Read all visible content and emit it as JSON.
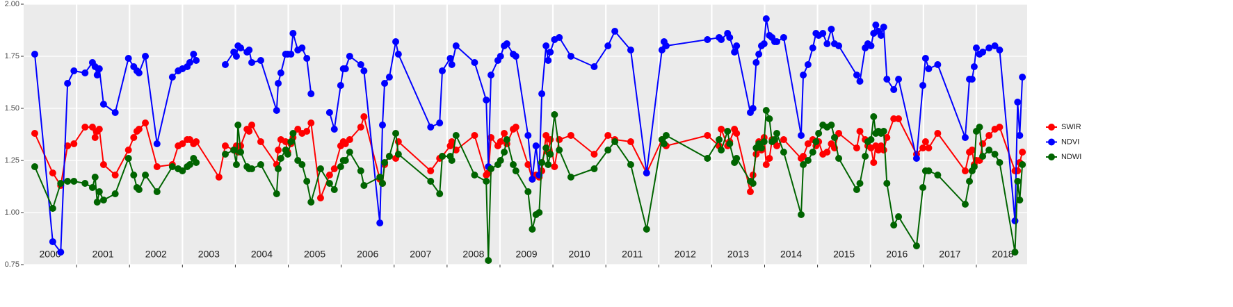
{
  "chart_data": {
    "type": "line",
    "x": [
      2000.21,
      2000.55,
      2000.7,
      2000.83,
      2000.95,
      2001.16,
      2001.3,
      2001.35,
      2001.39,
      2001.43,
      2001.51,
      2001.73,
      2001.98,
      2002.08,
      2002.14,
      2002.18,
      2002.3,
      2002.52,
      2002.81,
      2002.92,
      2003.0,
      2003.09,
      2003.14,
      2003.21,
      2003.26,
      2003.69,
      2003.81,
      2003.97,
      2004.02,
      2004.05,
      2004.1,
      2004.22,
      2004.26,
      2004.31,
      2004.48,
      2004.78,
      2004.81,
      2004.86,
      2004.95,
      2004.99,
      2005.05,
      2005.09,
      2005.18,
      2005.26,
      2005.35,
      2005.43,
      2005.61,
      2005.78,
      2005.87,
      2005.99,
      2006.04,
      2006.08,
      2006.16,
      2006.37,
      2006.43,
      2006.73,
      2006.78,
      2006.82,
      2006.91,
      2007.03,
      2007.08,
      2007.69,
      2007.86,
      2007.91,
      2008.06,
      2008.09,
      2008.17,
      2008.52,
      2008.74,
      2008.78,
      2008.83,
      2008.96,
      2009.01,
      2009.08,
      2009.13,
      2009.25,
      2009.3,
      2009.53,
      2009.61,
      2009.68,
      2009.74,
      2009.79,
      2009.87,
      2009.91,
      2009.95,
      2010.03,
      2010.12,
      2010.34,
      2010.78,
      2011.04,
      2011.17,
      2011.47,
      2011.77,
      2012.06,
      2012.1,
      2012.14,
      2012.92,
      2013.14,
      2013.18,
      2013.3,
      2013.34,
      2013.43,
      2013.47,
      2013.73,
      2013.78,
      2013.84,
      2013.89,
      2013.94,
      2013.99,
      2014.03,
      2014.09,
      2014.14,
      2014.19,
      2014.23,
      2014.36,
      2014.69,
      2014.73,
      2014.82,
      2014.91,
      2014.97,
      2015.02,
      2015.1,
      2015.18,
      2015.26,
      2015.32,
      2015.4,
      2015.74,
      2015.8,
      2015.9,
      2015.95,
      2016.01,
      2016.06,
      2016.1,
      2016.15,
      2016.2,
      2016.25,
      2016.31,
      2016.44,
      2016.53,
      2016.87,
      2016.99,
      2017.04,
      2017.1,
      2017.27,
      2017.79,
      2017.87,
      2017.92,
      2017.96,
      2018.0,
      2018.06,
      2018.12,
      2018.24,
      2018.35,
      2018.44,
      2018.73,
      2018.78,
      2018.82,
      2018.87
    ],
    "series": [
      {
        "name": "SWIR",
        "color": "#ff0000",
        "values": [
          1.38,
          1.19,
          1.13,
          1.32,
          1.33,
          1.41,
          1.41,
          1.36,
          1.39,
          1.4,
          1.23,
          1.18,
          1.3,
          1.36,
          1.39,
          1.4,
          1.43,
          1.22,
          1.23,
          1.32,
          1.33,
          1.35,
          1.35,
          1.33,
          1.34,
          1.17,
          1.32,
          1.3,
          1.32,
          1.29,
          1.32,
          1.4,
          1.39,
          1.42,
          1.34,
          1.23,
          1.3,
          1.35,
          1.34,
          1.29,
          1.33,
          1.36,
          1.4,
          1.38,
          1.39,
          1.43,
          1.07,
          1.18,
          1.21,
          1.32,
          1.34,
          1.33,
          1.35,
          1.41,
          1.46,
          1.16,
          1.14,
          1.23,
          1.27,
          1.26,
          1.34,
          1.2,
          1.26,
          1.27,
          1.32,
          1.34,
          1.3,
          1.37,
          1.18,
          1.19,
          1.36,
          1.32,
          1.34,
          1.38,
          1.33,
          1.4,
          1.41,
          1.23,
          1.16,
          1.18,
          1.17,
          1.2,
          1.37,
          1.29,
          1.35,
          1.22,
          1.35,
          1.37,
          1.28,
          1.37,
          1.35,
          1.34,
          1.19,
          1.35,
          1.33,
          1.32,
          1.37,
          1.32,
          1.4,
          1.32,
          1.34,
          1.4,
          1.38,
          1.1,
          1.18,
          1.28,
          1.34,
          1.3,
          1.36,
          1.23,
          1.26,
          1.35,
          1.34,
          1.32,
          1.35,
          1.26,
          1.27,
          1.33,
          1.35,
          1.32,
          1.34,
          1.28,
          1.29,
          1.33,
          1.31,
          1.38,
          1.31,
          1.39,
          1.35,
          1.32,
          1.31,
          1.24,
          1.32,
          1.3,
          1.32,
          1.3,
          1.36,
          1.45,
          1.45,
          1.28,
          1.31,
          1.34,
          1.31,
          1.38,
          1.2,
          1.29,
          1.3,
          1.23,
          1.25,
          1.25,
          1.33,
          1.37,
          1.4,
          1.41,
          1.2,
          1.2,
          1.24,
          1.29
        ]
      },
      {
        "name": "NDVI",
        "color": "#0000ff",
        "values": [
          1.76,
          0.86,
          0.81,
          1.62,
          1.68,
          1.67,
          1.72,
          1.7,
          1.66,
          1.69,
          1.52,
          1.48,
          1.74,
          1.7,
          1.68,
          1.67,
          1.75,
          1.33,
          1.65,
          1.68,
          1.69,
          1.7,
          1.72,
          1.76,
          1.73,
          null,
          1.71,
          1.77,
          1.75,
          1.8,
          1.79,
          1.77,
          1.78,
          1.72,
          1.73,
          1.49,
          1.62,
          1.67,
          1.76,
          1.76,
          1.76,
          1.86,
          1.78,
          1.79,
          1.74,
          1.57,
          null,
          1.48,
          1.4,
          1.61,
          1.69,
          1.69,
          1.75,
          1.71,
          1.68,
          0.95,
          1.42,
          1.62,
          1.65,
          1.82,
          1.76,
          1.41,
          1.43,
          1.68,
          1.74,
          1.71,
          1.8,
          1.72,
          1.54,
          1.22,
          1.66,
          1.73,
          1.75,
          1.8,
          1.81,
          1.76,
          1.75,
          1.37,
          1.16,
          1.32,
          1.18,
          1.57,
          1.8,
          1.73,
          1.77,
          1.83,
          1.84,
          1.75,
          1.7,
          1.8,
          1.87,
          1.78,
          1.19,
          1.78,
          1.82,
          1.8,
          1.83,
          1.84,
          1.83,
          1.86,
          1.84,
          1.77,
          1.8,
          1.48,
          1.5,
          1.72,
          1.76,
          1.8,
          1.81,
          1.93,
          1.85,
          1.84,
          1.82,
          1.82,
          1.84,
          1.37,
          1.66,
          1.71,
          1.79,
          1.86,
          1.85,
          1.86,
          1.81,
          1.88,
          1.81,
          1.8,
          1.66,
          1.63,
          1.79,
          1.81,
          1.8,
          1.86,
          1.9,
          1.87,
          1.85,
          1.89,
          1.64,
          1.59,
          1.64,
          1.26,
          1.61,
          1.74,
          1.69,
          1.71,
          1.36,
          1.64,
          1.64,
          1.7,
          1.79,
          1.76,
          1.77,
          1.79,
          1.8,
          1.78,
          0.96,
          1.53,
          1.37,
          1.65
        ]
      },
      {
        "name": "NDWI",
        "color": "#006400",
        "values": [
          1.22,
          1.02,
          1.14,
          1.15,
          1.15,
          1.14,
          1.12,
          1.17,
          1.05,
          1.1,
          1.06,
          1.09,
          1.26,
          1.18,
          1.12,
          1.11,
          1.18,
          1.1,
          1.22,
          1.21,
          1.2,
          1.22,
          1.23,
          1.26,
          1.24,
          null,
          1.28,
          1.3,
          1.23,
          1.42,
          1.29,
          1.22,
          1.21,
          1.21,
          1.23,
          1.09,
          1.21,
          1.26,
          1.3,
          1.28,
          1.34,
          1.38,
          1.25,
          1.23,
          1.15,
          1.05,
          1.21,
          1.14,
          1.11,
          1.22,
          1.25,
          1.25,
          1.29,
          1.2,
          1.13,
          1.17,
          1.14,
          1.24,
          1.27,
          1.38,
          1.28,
          1.15,
          1.09,
          1.27,
          1.27,
          1.25,
          1.37,
          1.18,
          1.15,
          0.77,
          1.21,
          1.23,
          1.25,
          1.29,
          1.35,
          1.23,
          1.2,
          1.1,
          0.92,
          0.99,
          1.0,
          1.24,
          1.31,
          1.23,
          1.28,
          1.47,
          1.3,
          1.17,
          1.21,
          1.3,
          1.34,
          1.23,
          0.92,
          1.35,
          1.33,
          1.37,
          1.26,
          1.35,
          1.3,
          1.39,
          1.33,
          1.24,
          1.26,
          1.15,
          1.14,
          1.31,
          1.33,
          1.31,
          1.34,
          1.49,
          1.45,
          1.34,
          1.35,
          1.38,
          1.29,
          0.99,
          1.23,
          1.25,
          1.29,
          1.34,
          1.38,
          1.42,
          1.41,
          1.42,
          1.36,
          1.26,
          1.11,
          1.14,
          1.27,
          1.34,
          1.35,
          1.46,
          1.38,
          1.39,
          1.38,
          1.39,
          1.14,
          0.94,
          0.98,
          0.84,
          1.12,
          1.2,
          1.2,
          1.18,
          1.04,
          1.15,
          1.2,
          1.22,
          1.39,
          1.41,
          1.27,
          1.3,
          1.28,
          1.24,
          0.81,
          1.15,
          1.06,
          1.23
        ]
      }
    ],
    "xlim": [
      2000,
      2018.96
    ],
    "xticks": [
      {
        "value": 2000.5,
        "label": "2000"
      },
      {
        "value": 2001.5,
        "label": "2001"
      },
      {
        "value": 2002.5,
        "label": "2002"
      },
      {
        "value": 2003.5,
        "label": "2003"
      },
      {
        "value": 2004.5,
        "label": "2004"
      },
      {
        "value": 2005.5,
        "label": "2005"
      },
      {
        "value": 2006.5,
        "label": "2006"
      },
      {
        "value": 2007.5,
        "label": "2007"
      },
      {
        "value": 2008.5,
        "label": "2008"
      },
      {
        "value": 2009.5,
        "label": "2009"
      },
      {
        "value": 2010.5,
        "label": "2010"
      },
      {
        "value": 2011.5,
        "label": "2011"
      },
      {
        "value": 2012.5,
        "label": "2012"
      },
      {
        "value": 2013.5,
        "label": "2013"
      },
      {
        "value": 2014.5,
        "label": "2014"
      },
      {
        "value": 2015.5,
        "label": "2015"
      },
      {
        "value": 2016.5,
        "label": "2016"
      },
      {
        "value": 2017.5,
        "label": "2017"
      },
      {
        "value": 2018.5,
        "label": "2018"
      }
    ],
    "xgrid": [
      2001,
      2002,
      2003,
      2004,
      2005,
      2006,
      2007,
      2008,
      2009,
      2010,
      2011,
      2012,
      2013,
      2014,
      2015,
      2016,
      2017,
      2018
    ],
    "ylim": [
      0.75,
      2.0
    ],
    "yticks": [
      0.75,
      {
        "value": 1.0,
        "label": "1.00"
      },
      1.25,
      {
        "value": 1.5,
        "label": "1.50"
      },
      1.75,
      {
        "value": 2.0,
        "label": "2.00"
      }
    ],
    "grid": true,
    "legend": "right"
  }
}
